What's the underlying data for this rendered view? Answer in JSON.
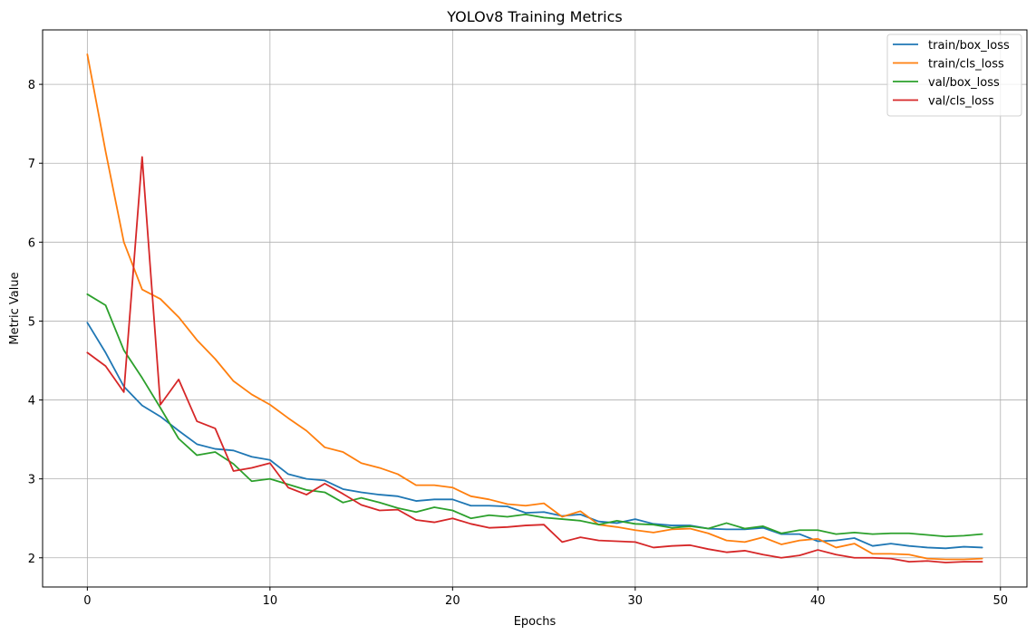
{
  "chart_data": {
    "type": "line",
    "title": "YOLOv8 Training Metrics",
    "xlabel": "Epochs",
    "ylabel": "Metric Value",
    "xlim": [
      -2.45,
      51.45
    ],
    "ylim": [
      1.63,
      8.69
    ],
    "xticks": [
      0,
      10,
      20,
      30,
      40,
      50
    ],
    "yticks": [
      2,
      3,
      4,
      5,
      6,
      7,
      8
    ],
    "grid": true,
    "legend_position": "top-right",
    "x": [
      0,
      1,
      2,
      3,
      4,
      5,
      6,
      7,
      8,
      9,
      10,
      11,
      12,
      13,
      14,
      15,
      16,
      17,
      18,
      19,
      20,
      21,
      22,
      23,
      24,
      25,
      26,
      27,
      28,
      29,
      30,
      31,
      32,
      33,
      34,
      35,
      36,
      37,
      38,
      39,
      40,
      41,
      42,
      43,
      44,
      45,
      46,
      47,
      48,
      49
    ],
    "series": [
      {
        "name": "train/box_loss",
        "color": "#1f77b4",
        "values": [
          4.98,
          4.6,
          4.17,
          3.93,
          3.79,
          3.61,
          3.44,
          3.38,
          3.36,
          3.28,
          3.24,
          3.06,
          3.0,
          2.98,
          2.87,
          2.83,
          2.8,
          2.78,
          2.72,
          2.74,
          2.74,
          2.66,
          2.66,
          2.65,
          2.57,
          2.58,
          2.53,
          2.55,
          2.46,
          2.44,
          2.49,
          2.43,
          2.41,
          2.41,
          2.37,
          2.36,
          2.36,
          2.38,
          2.3,
          2.3,
          2.21,
          2.22,
          2.25,
          2.15,
          2.18,
          2.15,
          2.13,
          2.12,
          2.14,
          2.13
        ]
      },
      {
        "name": "train/cls_loss",
        "color": "#ff7f0e",
        "values": [
          8.38,
          7.15,
          6.0,
          5.4,
          5.28,
          5.05,
          4.76,
          4.52,
          4.24,
          4.07,
          3.94,
          3.77,
          3.61,
          3.4,
          3.34,
          3.2,
          3.14,
          3.06,
          2.92,
          2.92,
          2.89,
          2.78,
          2.74,
          2.68,
          2.66,
          2.69,
          2.52,
          2.59,
          2.42,
          2.39,
          2.35,
          2.32,
          2.36,
          2.37,
          2.31,
          2.22,
          2.2,
          2.26,
          2.17,
          2.22,
          2.24,
          2.13,
          2.18,
          2.05,
          2.05,
          2.04,
          1.99,
          1.98,
          1.98,
          1.99
        ]
      },
      {
        "name": "val/box_loss",
        "color": "#2ca02c",
        "values": [
          5.34,
          5.2,
          4.63,
          4.28,
          3.9,
          3.51,
          3.3,
          3.34,
          3.19,
          2.97,
          3.0,
          2.93,
          2.86,
          2.83,
          2.7,
          2.76,
          2.7,
          2.63,
          2.58,
          2.64,
          2.6,
          2.5,
          2.54,
          2.52,
          2.55,
          2.51,
          2.49,
          2.47,
          2.42,
          2.47,
          2.43,
          2.42,
          2.38,
          2.4,
          2.37,
          2.44,
          2.37,
          2.4,
          2.31,
          2.35,
          2.35,
          2.3,
          2.32,
          2.3,
          2.31,
          2.31,
          2.29,
          2.27,
          2.28,
          2.3
        ]
      },
      {
        "name": "val/cls_loss",
        "color": "#d62728",
        "values": [
          4.6,
          4.43,
          4.1,
          7.08,
          3.94,
          4.26,
          3.73,
          3.64,
          3.1,
          3.14,
          3.2,
          2.89,
          2.8,
          2.94,
          2.81,
          2.67,
          2.6,
          2.61,
          2.48,
          2.45,
          2.5,
          2.43,
          2.38,
          2.39,
          2.41,
          2.42,
          2.2,
          2.26,
          2.22,
          2.21,
          2.2,
          2.13,
          2.15,
          2.16,
          2.11,
          2.07,
          2.09,
          2.04,
          2.0,
          2.03,
          2.1,
          2.04,
          2.0,
          2.0,
          1.99,
          1.95,
          1.96,
          1.94,
          1.95,
          1.95
        ]
      }
    ]
  }
}
